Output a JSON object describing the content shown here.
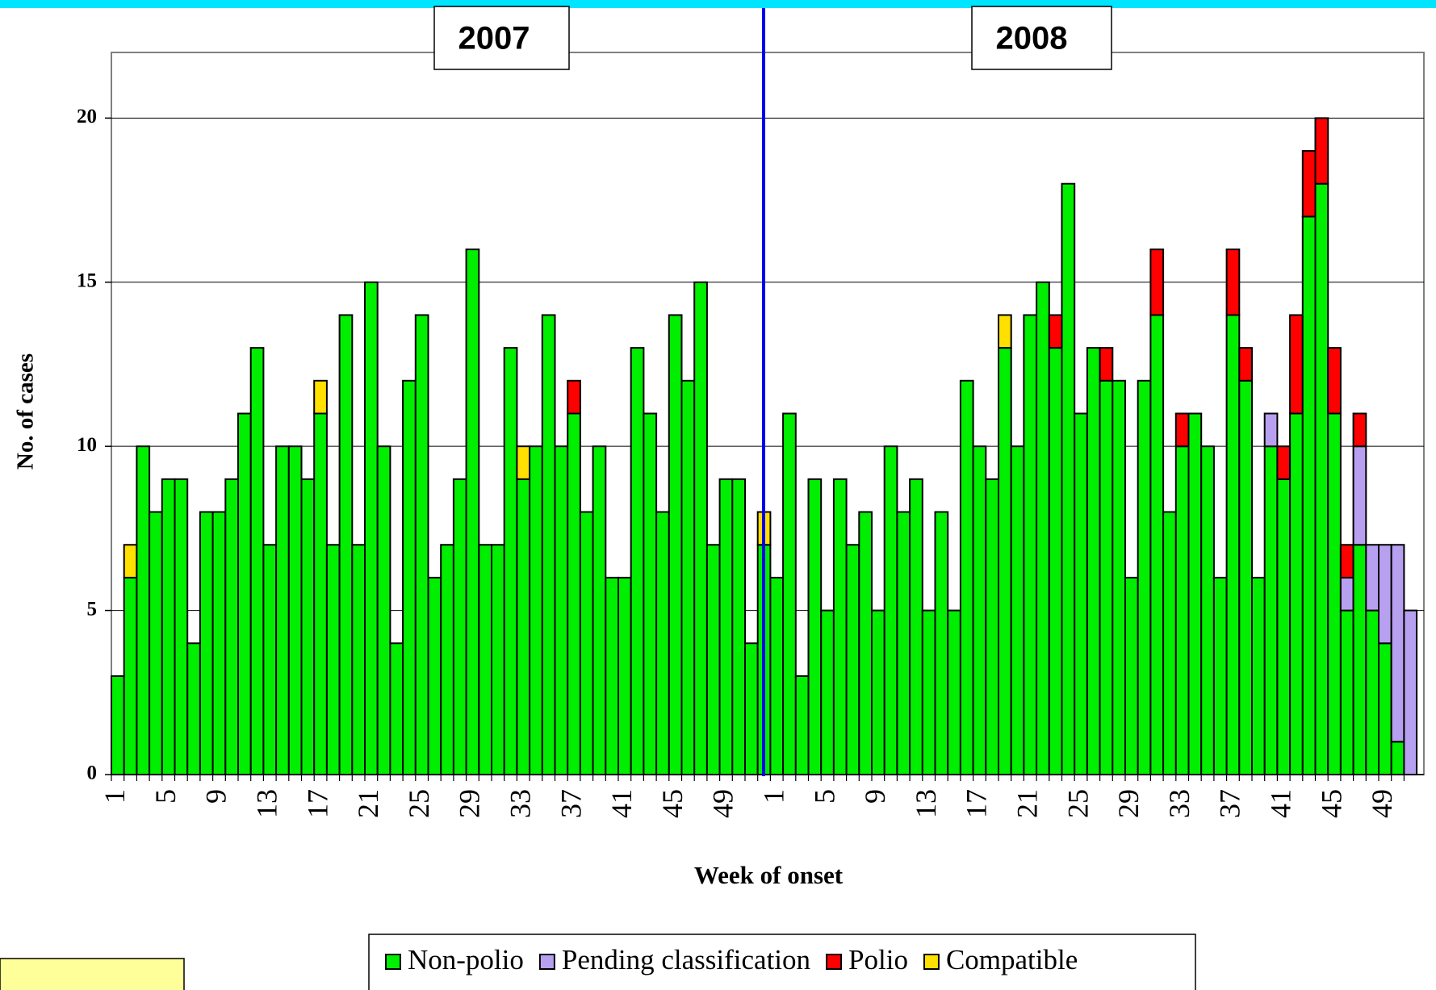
{
  "chart_data": {
    "type": "stacked_bar",
    "y_label": "No. of cases",
    "x_label": "Week of onset",
    "annotations": [
      "2007",
      "2008"
    ],
    "categories": [
      1,
      null,
      null,
      null,
      5,
      null,
      null,
      null,
      9,
      null,
      null,
      null,
      13,
      null,
      null,
      null,
      17,
      null,
      null,
      null,
      21,
      null,
      null,
      null,
      25,
      null,
      null,
      null,
      29,
      null,
      null,
      null,
      33,
      null,
      null,
      null,
      37,
      null,
      null,
      null,
      41,
      null,
      null,
      null,
      45,
      null,
      null,
      null,
      49,
      null,
      null,
      null,
      1,
      null,
      null,
      null,
      5,
      null,
      null,
      null,
      9,
      null,
      null,
      null,
      13,
      null,
      null,
      null,
      17,
      null,
      null,
      null,
      21,
      null,
      null,
      null,
      25,
      null,
      null,
      null,
      29,
      null,
      null,
      null,
      33,
      null,
      null,
      null,
      37,
      null,
      null,
      null,
      41,
      null,
      null,
      null,
      45,
      null,
      null,
      null,
      49,
      null,
      null
    ],
    "series": [
      {
        "name": "Non-polio",
        "color": "#00ee00",
        "values": [
          3,
          6,
          10,
          8,
          9,
          9,
          4,
          8,
          8,
          9,
          11,
          13,
          7,
          10,
          10,
          9,
          11,
          7,
          14,
          7,
          15,
          10,
          4,
          12,
          14,
          6,
          7,
          9,
          16,
          7,
          7,
          13,
          9,
          10,
          14,
          10,
          11,
          8,
          10,
          6,
          6,
          13,
          11,
          8,
          14,
          12,
          15,
          7,
          9,
          9,
          4,
          7,
          6,
          11,
          3,
          9,
          5,
          9,
          7,
          8,
          5,
          10,
          8,
          9,
          5,
          8,
          5,
          12,
          10,
          9,
          13,
          10,
          14,
          15,
          13,
          18,
          11,
          13,
          12,
          12,
          6,
          12,
          14,
          8,
          10,
          11,
          10,
          6,
          14,
          12,
          6,
          10,
          9,
          11,
          17,
          18,
          11,
          5,
          7,
          5,
          4,
          1,
          0
        ]
      },
      {
        "name": "Pending classification",
        "color": "#b8a0f0",
        "values": [
          0,
          0,
          0,
          0,
          0,
          0,
          0,
          0,
          0,
          0,
          0,
          0,
          0,
          0,
          0,
          0,
          0,
          0,
          0,
          0,
          0,
          0,
          0,
          0,
          0,
          0,
          0,
          0,
          0,
          0,
          0,
          0,
          0,
          0,
          0,
          0,
          0,
          0,
          0,
          0,
          0,
          0,
          0,
          0,
          0,
          0,
          0,
          0,
          0,
          0,
          0,
          0,
          0,
          0,
          0,
          0,
          0,
          0,
          0,
          0,
          0,
          0,
          0,
          0,
          0,
          0,
          0,
          0,
          0,
          0,
          0,
          0,
          0,
          0,
          0,
          0,
          0,
          0,
          0,
          0,
          0,
          0,
          0,
          0,
          0,
          0,
          0,
          0,
          0,
          0,
          0,
          1,
          0,
          0,
          0,
          0,
          0,
          1,
          3,
          2,
          3,
          6,
          5
        ]
      },
      {
        "name": "Polio",
        "color": "#ff0000",
        "values": [
          0,
          0,
          0,
          0,
          0,
          0,
          0,
          0,
          0,
          0,
          0,
          0,
          0,
          0,
          0,
          0,
          0,
          0,
          0,
          0,
          0,
          0,
          0,
          0,
          0,
          0,
          0,
          0,
          0,
          0,
          0,
          0,
          0,
          0,
          0,
          0,
          1,
          0,
          0,
          0,
          0,
          0,
          0,
          0,
          0,
          0,
          0,
          0,
          0,
          0,
          0,
          0,
          0,
          0,
          0,
          0,
          0,
          0,
          0,
          0,
          0,
          0,
          0,
          0,
          0,
          0,
          0,
          0,
          0,
          0,
          0,
          0,
          0,
          0,
          1,
          0,
          0,
          0,
          1,
          0,
          0,
          0,
          2,
          0,
          1,
          0,
          0,
          0,
          2,
          1,
          0,
          0,
          1,
          3,
          2,
          2,
          2,
          1,
          1,
          0,
          0,
          0,
          0
        ]
      },
      {
        "name": "Compatible",
        "color": "#ffe000",
        "values": [
          0,
          1,
          0,
          0,
          0,
          0,
          0,
          0,
          0,
          0,
          0,
          0,
          0,
          0,
          0,
          0,
          1,
          0,
          0,
          0,
          0,
          0,
          0,
          0,
          0,
          0,
          0,
          0,
          0,
          0,
          0,
          0,
          1,
          0,
          0,
          0,
          0,
          0,
          0,
          0,
          0,
          0,
          0,
          0,
          0,
          0,
          0,
          0,
          0,
          0,
          0,
          1,
          0,
          0,
          0,
          0,
          0,
          0,
          0,
          0,
          0,
          0,
          0,
          0,
          0,
          0,
          0,
          0,
          0,
          0,
          1,
          0,
          0,
          0,
          0,
          0,
          0,
          0,
          0,
          0,
          0,
          0,
          0,
          0,
          0,
          0,
          0,
          0,
          0,
          0,
          0,
          0,
          0,
          0,
          0,
          0,
          0,
          0,
          0,
          0,
          0,
          0,
          0
        ]
      }
    ],
    "ylim": [
      0,
      22
    ],
    "yticks": [
      0,
      5,
      10,
      15,
      20
    ],
    "grid": true,
    "legend": "bottom"
  }
}
